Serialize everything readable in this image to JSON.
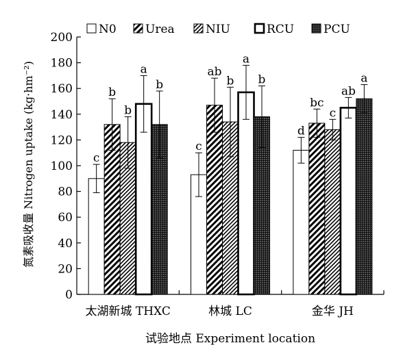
{
  "chart_data": {
    "type": "bar",
    "xlabel": "试验地点 Experiment location",
    "ylabel": "氮素吸收量 Nitrogen uptake (kg·hm⁻²)",
    "ylim": [
      0,
      200
    ],
    "yticks": [
      0,
      20,
      40,
      60,
      80,
      100,
      120,
      140,
      160,
      180,
      200
    ],
    "categories": [
      "太湖新城 THXC",
      "林城 LC",
      "金华 JH"
    ],
    "legend_position": "top",
    "grid": false,
    "series": [
      {
        "name": "N0",
        "pattern": "white",
        "values": [
          90,
          93,
          112
        ],
        "errors": [
          11,
          17,
          10
        ],
        "letters": [
          "c",
          "c",
          "d"
        ]
      },
      {
        "name": "Urea",
        "pattern": "diag-wide",
        "values": [
          132,
          147,
          133
        ],
        "errors": [
          20,
          21,
          11
        ],
        "letters": [
          "b",
          "ab",
          "bc"
        ]
      },
      {
        "name": "NIU",
        "pattern": "diag-narrow",
        "values": [
          118,
          134,
          128
        ],
        "errors": [
          20,
          27,
          8
        ],
        "letters": [
          "b",
          "b",
          "c"
        ]
      },
      {
        "name": "RCU",
        "pattern": "thick-frame",
        "values": [
          148,
          157,
          145
        ],
        "errors": [
          22,
          21,
          8
        ],
        "letters": [
          "a",
          "a",
          "ab"
        ]
      },
      {
        "name": "PCU",
        "pattern": "dark-grid",
        "values": [
          132,
          138,
          152
        ],
        "errors": [
          26,
          24,
          11
        ],
        "letters": [
          "b",
          "b",
          "a"
        ]
      }
    ]
  }
}
